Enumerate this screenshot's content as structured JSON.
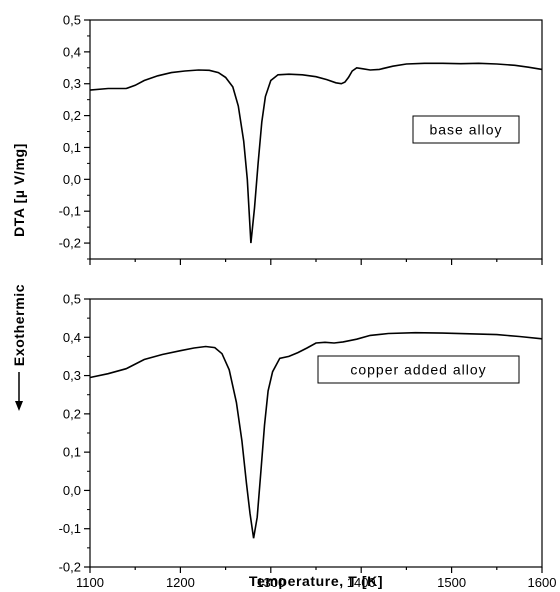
{
  "chart_data": [
    {
      "type": "line",
      "panel": "top",
      "annotation": "base alloy",
      "xlim": [
        1100,
        1600
      ],
      "ylim": [
        -0.25,
        0.5
      ],
      "y_ticks": [
        0.5,
        0.4,
        0.3,
        0.2,
        0.1,
        0.0,
        -0.1,
        -0.2
      ],
      "y_tick_labels": [
        "0,5",
        "0,4",
        "0,3",
        "0,2",
        "0,1",
        "0,0",
        "-0,1",
        "-0,2"
      ],
      "grid": false,
      "series": [
        {
          "x": [
            1100,
            1120,
            1140,
            1150,
            1160,
            1175,
            1190,
            1205,
            1220,
            1232,
            1242,
            1250,
            1258,
            1264,
            1270,
            1274,
            1278,
            1282,
            1286,
            1290,
            1294,
            1300,
            1308,
            1320,
            1335,
            1350,
            1362,
            1372,
            1378,
            1382,
            1386,
            1390,
            1395,
            1402,
            1410,
            1420,
            1435,
            1450,
            1470,
            1490,
            1510,
            1530,
            1550,
            1570,
            1585,
            1600
          ],
          "y": [
            0.28,
            0.285,
            0.285,
            0.295,
            0.31,
            0.325,
            0.335,
            0.34,
            0.343,
            0.342,
            0.335,
            0.32,
            0.29,
            0.23,
            0.12,
            0.0,
            -0.2,
            -0.09,
            0.05,
            0.18,
            0.26,
            0.31,
            0.328,
            0.33,
            0.328,
            0.322,
            0.313,
            0.303,
            0.3,
            0.305,
            0.32,
            0.34,
            0.35,
            0.347,
            0.343,
            0.345,
            0.355,
            0.362,
            0.364,
            0.364,
            0.363,
            0.364,
            0.362,
            0.358,
            0.352,
            0.345
          ]
        }
      ]
    },
    {
      "type": "line",
      "panel": "bottom",
      "annotation": "copper added alloy",
      "xlabel": "Temperature, T [K]",
      "xlim": [
        1100,
        1600
      ],
      "x_ticks": [
        1100,
        1200,
        1300,
        1400,
        1500,
        1600
      ],
      "x_tick_labels": [
        "1100",
        "1200",
        "1300",
        "1400",
        "1500",
        "1600"
      ],
      "ylim": [
        -0.2,
        0.5
      ],
      "y_ticks": [
        0.5,
        0.4,
        0.3,
        0.2,
        0.1,
        0.0,
        -0.1,
        -0.2
      ],
      "y_tick_labels": [
        "0,5",
        "0,4",
        "0,3",
        "0,2",
        "0,1",
        "0,0",
        "-0,1",
        "-0,2"
      ],
      "grid": false,
      "series": [
        {
          "x": [
            1100,
            1120,
            1140,
            1160,
            1180,
            1200,
            1215,
            1228,
            1238,
            1246,
            1254,
            1262,
            1268,
            1273,
            1277,
            1281,
            1285,
            1289,
            1293,
            1297,
            1302,
            1310,
            1320,
            1330,
            1340,
            1350,
            1360,
            1370,
            1380,
            1395,
            1410,
            1430,
            1460,
            1490,
            1520,
            1550,
            1575,
            1600
          ],
          "y": [
            0.295,
            0.305,
            0.318,
            0.342,
            0.355,
            0.365,
            0.372,
            0.376,
            0.373,
            0.357,
            0.315,
            0.23,
            0.13,
            0.02,
            -0.06,
            -0.125,
            -0.07,
            0.05,
            0.17,
            0.26,
            0.31,
            0.345,
            0.35,
            0.36,
            0.372,
            0.385,
            0.387,
            0.385,
            0.388,
            0.395,
            0.405,
            0.41,
            0.412,
            0.411,
            0.409,
            0.407,
            0.402,
            0.396
          ]
        }
      ]
    }
  ],
  "ylabel": "DTA [µ V/mg]",
  "side_label": "Exothermic",
  "colors": {
    "line": "#000000",
    "axis": "#000000",
    "background": "#ffffff"
  }
}
